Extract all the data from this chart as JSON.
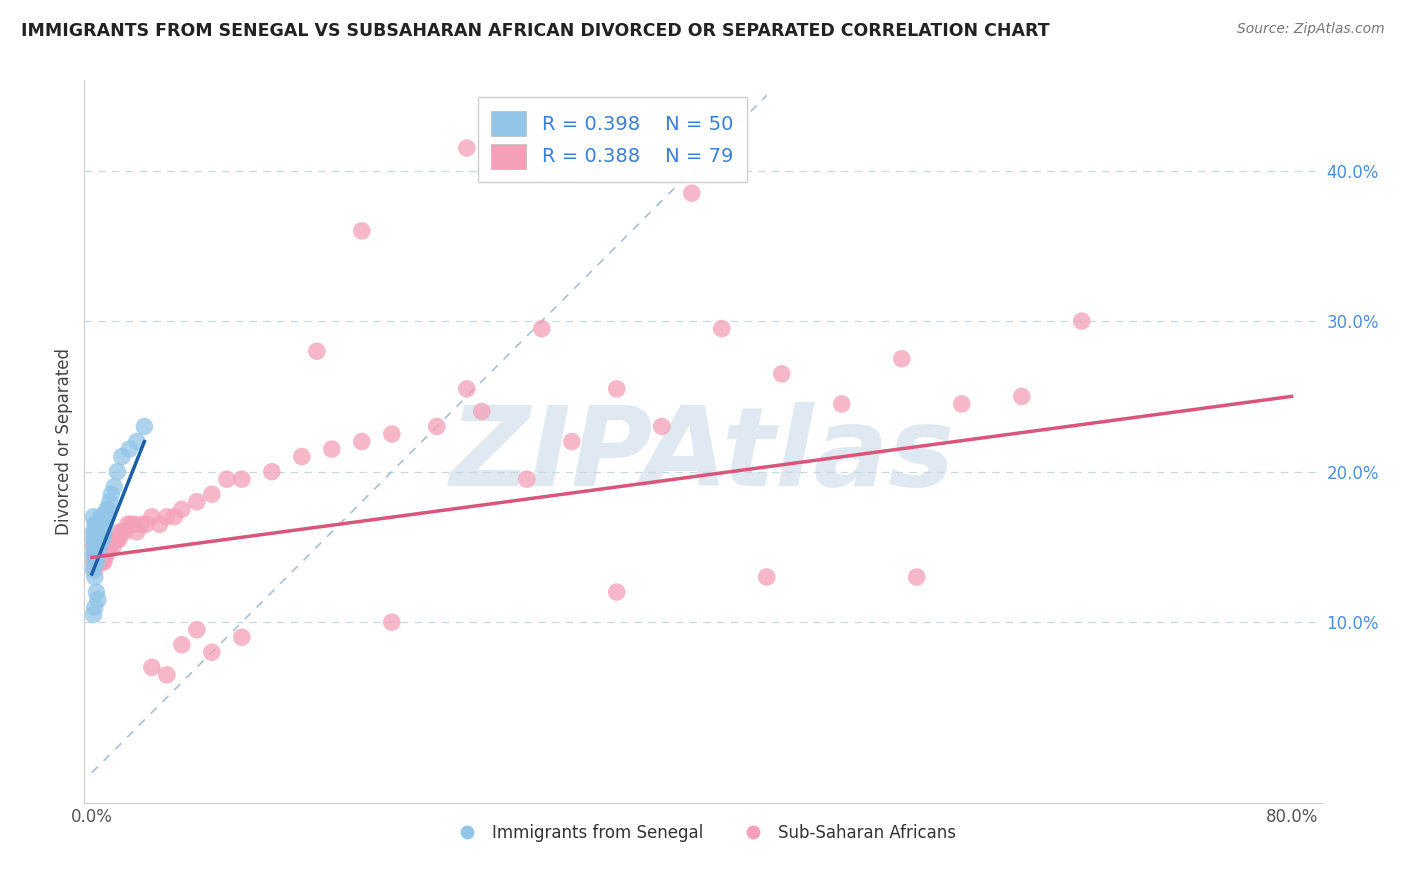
{
  "title": "IMMIGRANTS FROM SENEGAL VS SUBSAHARAN AFRICAN DIVORCED OR SEPARATED CORRELATION CHART",
  "source": "Source: ZipAtlas.com",
  "ylabel": "Divorced or Separated",
  "xlim": [
    -0.005,
    0.82
  ],
  "ylim": [
    -0.02,
    0.46
  ],
  "xticks": [
    0.0,
    0.1,
    0.2,
    0.3,
    0.4,
    0.5,
    0.6,
    0.7,
    0.8
  ],
  "xticklabels": [
    "0.0%",
    "",
    "",
    "",
    "",
    "",
    "",
    "",
    "80.0%"
  ],
  "yticks_right": [
    0.1,
    0.2,
    0.3,
    0.4
  ],
  "ytick_right_labels": [
    "10.0%",
    "20.0%",
    "30.0%",
    "40.0%"
  ],
  "blue_color": "#92c5e8",
  "pink_color": "#f4a0b8",
  "blue_line_color": "#1a5fa8",
  "pink_line_color": "#d9567a",
  "ref_line_color": "#a8c0d8",
  "grid_color": "#c8d8e0",
  "watermark": "ZIPAtlas",
  "watermark_color": "#c8d8e8",
  "legend_text_color": "#3a7fd5",
  "blue_scatter_x": [
    0.001,
    0.001,
    0.001,
    0.001,
    0.001,
    0.002,
    0.002,
    0.002,
    0.002,
    0.002,
    0.002,
    0.002,
    0.003,
    0.003,
    0.003,
    0.003,
    0.003,
    0.003,
    0.004,
    0.004,
    0.004,
    0.004,
    0.004,
    0.005,
    0.005,
    0.005,
    0.005,
    0.006,
    0.006,
    0.006,
    0.007,
    0.007,
    0.008,
    0.008,
    0.009,
    0.01,
    0.01,
    0.011,
    0.012,
    0.013,
    0.015,
    0.017,
    0.02,
    0.025,
    0.03,
    0.035,
    0.003,
    0.004,
    0.002,
    0.001
  ],
  "blue_scatter_y": [
    0.135,
    0.145,
    0.155,
    0.16,
    0.17,
    0.13,
    0.14,
    0.145,
    0.15,
    0.155,
    0.16,
    0.165,
    0.14,
    0.145,
    0.15,
    0.155,
    0.16,
    0.165,
    0.145,
    0.15,
    0.155,
    0.16,
    0.165,
    0.15,
    0.155,
    0.16,
    0.165,
    0.155,
    0.16,
    0.17,
    0.155,
    0.165,
    0.16,
    0.17,
    0.165,
    0.17,
    0.175,
    0.175,
    0.18,
    0.185,
    0.19,
    0.2,
    0.21,
    0.215,
    0.22,
    0.23,
    0.12,
    0.115,
    0.11,
    0.105
  ],
  "pink_scatter_x": [
    0.001,
    0.001,
    0.002,
    0.002,
    0.003,
    0.003,
    0.004,
    0.004,
    0.005,
    0.005,
    0.006,
    0.006,
    0.007,
    0.007,
    0.008,
    0.008,
    0.009,
    0.01,
    0.01,
    0.011,
    0.012,
    0.013,
    0.014,
    0.015,
    0.016,
    0.017,
    0.018,
    0.019,
    0.02,
    0.022,
    0.024,
    0.026,
    0.028,
    0.03,
    0.033,
    0.036,
    0.04,
    0.045,
    0.05,
    0.055,
    0.06,
    0.07,
    0.08,
    0.09,
    0.1,
    0.12,
    0.14,
    0.16,
    0.18,
    0.2,
    0.23,
    0.26,
    0.29,
    0.32,
    0.35,
    0.38,
    0.42,
    0.46,
    0.5,
    0.54,
    0.58,
    0.62,
    0.66,
    0.15,
    0.25,
    0.3,
    0.07,
    0.04,
    0.06,
    0.05,
    0.08,
    0.1,
    0.2,
    0.35,
    0.45,
    0.55,
    0.4,
    0.25,
    0.18
  ],
  "pink_scatter_y": [
    0.14,
    0.15,
    0.135,
    0.145,
    0.14,
    0.15,
    0.14,
    0.15,
    0.14,
    0.15,
    0.14,
    0.15,
    0.14,
    0.15,
    0.14,
    0.15,
    0.145,
    0.145,
    0.155,
    0.15,
    0.15,
    0.155,
    0.15,
    0.155,
    0.155,
    0.155,
    0.155,
    0.16,
    0.16,
    0.16,
    0.165,
    0.165,
    0.165,
    0.16,
    0.165,
    0.165,
    0.17,
    0.165,
    0.17,
    0.17,
    0.175,
    0.18,
    0.185,
    0.195,
    0.195,
    0.2,
    0.21,
    0.215,
    0.22,
    0.225,
    0.23,
    0.24,
    0.195,
    0.22,
    0.255,
    0.23,
    0.295,
    0.265,
    0.245,
    0.275,
    0.245,
    0.25,
    0.3,
    0.28,
    0.255,
    0.295,
    0.095,
    0.07,
    0.085,
    0.065,
    0.08,
    0.09,
    0.1,
    0.12,
    0.13,
    0.13,
    0.385,
    0.415,
    0.36
  ],
  "blue_trend_x": [
    0.0,
    0.035
  ],
  "blue_trend_y_start": 0.132,
  "blue_trend_y_end": 0.22,
  "pink_trend_x": [
    0.0,
    0.8
  ],
  "pink_trend_y_start": 0.143,
  "pink_trend_y_end": 0.25
}
